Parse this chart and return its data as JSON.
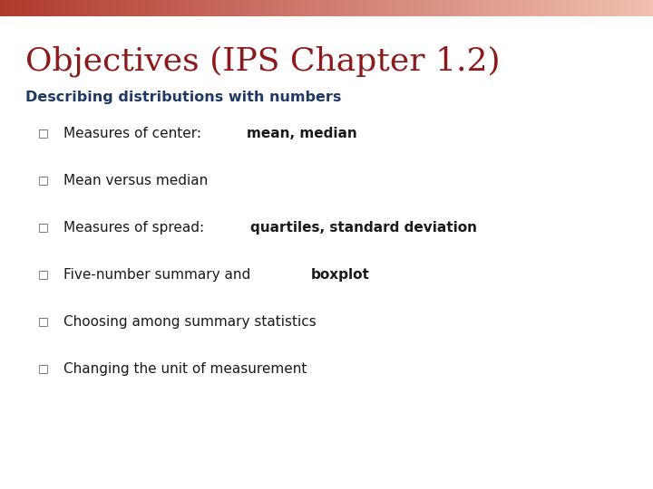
{
  "title": "Objectives (IPS Chapter 1.2)",
  "title_color": "#8B1A1A",
  "subtitle": "Describing distributions with numbers",
  "subtitle_color": "#1F3864",
  "background_color": "#FFFFFF",
  "bar_top_gradient_left": "#B03A2E",
  "bar_top_gradient_right": "#F0C0B0",
  "bullet_color": "#555555",
  "bullet_char": "□",
  "items": [
    {
      "text_normal": "Measures of center: ",
      "text_bold": "mean, median",
      "has_bold": true
    },
    {
      "text_normal": "Mean versus median",
      "text_bold": "",
      "has_bold": false
    },
    {
      "text_normal": "Measures of spread: ",
      "text_bold": "quartiles, standard deviation",
      "has_bold": true
    },
    {
      "text_normal": "Five-number summary and ",
      "text_bold": "boxplot",
      "has_bold": true
    },
    {
      "text_normal": "Choosing among summary statistics",
      "text_bold": "",
      "has_bold": false
    },
    {
      "text_normal": "Changing the unit of measurement",
      "text_bold": "",
      "has_bold": false
    }
  ],
  "text_color": "#1a1a1a",
  "title_fontsize": 26,
  "subtitle_fontsize": 11.5,
  "item_fontsize": 11,
  "bullet_fontsize": 9
}
